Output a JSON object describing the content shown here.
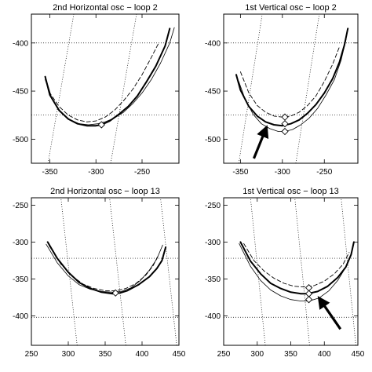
{
  "chart_data": [
    {
      "type": "line",
      "title": "2nd Horizontal osc − loop  2",
      "xlim": [
        -370,
        -210
      ],
      "ylim": [
        -525,
        -370
      ],
      "xticks": [
        -350,
        -300,
        -250
      ],
      "xtick_labels": [
        "-350",
        "-300",
        "-250"
      ],
      "yticks": [
        -400,
        -450,
        -500
      ],
      "ytick_labels": [
        "-400",
        "-450",
        "-500"
      ],
      "grid": "dotted reference lines",
      "series": [
        {
          "style": "thick-solid",
          "x": [
            -355,
            -350,
            -340,
            -330,
            -320,
            -310,
            -300,
            -294,
            -285,
            -275,
            -265,
            -255,
            -245,
            -235,
            -225,
            -220
          ],
          "y": [
            -435,
            -454,
            -470,
            -479,
            -484,
            -486,
            -486,
            -485,
            -481,
            -474,
            -466,
            -455,
            -440,
            -424,
            -403,
            -385
          ]
        },
        {
          "style": "thin-solid",
          "x": [
            -354,
            -348,
            -338,
            -328,
            -318,
            -308,
            -298,
            -290,
            -280,
            -270,
            -260,
            -250,
            -240,
            -230,
            -220,
            -215
          ],
          "y": [
            -438,
            -457,
            -472,
            -480,
            -484,
            -485,
            -484,
            -482,
            -478,
            -472,
            -463,
            -452,
            -438,
            -421,
            -400,
            -384
          ]
        },
        {
          "style": "dashed",
          "x": [
            -355,
            -350,
            -340,
            -330,
            -320,
            -310,
            -300,
            -290,
            -280,
            -270,
            -260,
            -250,
            -240,
            -232
          ],
          "y": [
            -438,
            -452,
            -466,
            -475,
            -480,
            -482,
            -481,
            -477,
            -470,
            -460,
            -448,
            -433,
            -415,
            -400
          ]
        }
      ],
      "markers": [
        {
          "x": -294,
          "y": -485
        }
      ],
      "reference_lines": {
        "horizontal": [
          -400,
          -475
        ],
        "slanted": [
          [
            [
              -352,
              -525
            ],
            [
              -324,
              -370
            ]
          ],
          [
            [
              -284,
              -525
            ],
            [
              -256,
              -370
            ]
          ]
        ]
      }
    },
    {
      "type": "line",
      "title": "1st Vertical osc − loop  2",
      "xlim": [
        -370,
        -210
      ],
      "ylim": [
        -525,
        -370
      ],
      "xticks": [
        -350,
        -300,
        -250
      ],
      "xtick_labels": [
        "-350",
        "-300",
        "-250"
      ],
      "yticks": [
        -400,
        -450,
        -500
      ],
      "ytick_labels": [
        "-400",
        "-450",
        "-500"
      ],
      "grid": "dotted reference lines",
      "series": [
        {
          "style": "thick-solid",
          "x": [
            -355,
            -350,
            -340,
            -330,
            -320,
            -310,
            -300,
            -290,
            -280,
            -270,
            -260,
            -250,
            -240,
            -232,
            -226,
            -222
          ],
          "y": [
            -433,
            -449,
            -466,
            -476,
            -482,
            -485,
            -486,
            -484,
            -480,
            -473,
            -464,
            -452,
            -437,
            -420,
            -402,
            -385
          ]
        },
        {
          "style": "thin-solid",
          "x": [
            -352,
            -345,
            -335,
            -325,
            -315,
            -305,
            -297,
            -288,
            -278,
            -268,
            -258,
            -248,
            -238,
            -230,
            -224
          ],
          "y": [
            -440,
            -457,
            -474,
            -484,
            -489,
            -492,
            -492,
            -490,
            -485,
            -478,
            -468,
            -454,
            -438,
            -418,
            -396
          ]
        },
        {
          "style": "dashed",
          "x": [
            -350,
            -340,
            -330,
            -320,
            -310,
            -300,
            -290,
            -280,
            -270,
            -260,
            -250,
            -240,
            -232
          ],
          "y": [
            -430,
            -452,
            -465,
            -472,
            -476,
            -477,
            -476,
            -472,
            -465,
            -455,
            -440,
            -422,
            -404
          ]
        }
      ],
      "markers": [
        {
          "x": -297,
          "y": -477
        },
        {
          "x": -297,
          "y": -484
        },
        {
          "x": -297,
          "y": -492
        }
      ],
      "arrows": [
        {
          "from": [
            -334,
            -520
          ],
          "to": [
            -321,
            -492
          ]
        }
      ],
      "reference_lines": {
        "horizontal": [
          -400,
          -475
        ],
        "slanted": [
          [
            [
              -352,
              -525
            ],
            [
              -324,
              -370
            ]
          ],
          [
            [
              -284,
              -525
            ],
            [
              -256,
              -370
            ]
          ]
        ]
      }
    },
    {
      "type": "line",
      "title": "2nd Horizontal osc − loop  13",
      "xlim": [
        250,
        450
      ],
      "ylim": [
        -440,
        -240
      ],
      "xticks": [
        250,
        300,
        350,
        400,
        450
      ],
      "xtick_labels": [
        "250",
        "300",
        "350",
        "400",
        "450"
      ],
      "yticks": [
        -250,
        -300,
        -350,
        -400
      ],
      "ytick_labels": [
        "-250",
        "-300",
        "-350",
        "-400"
      ],
      "grid": "dotted reference lines",
      "series": [
        {
          "style": "thick-solid",
          "x": [
            272,
            285,
            300,
            315,
            330,
            345,
            360,
            370,
            380,
            395,
            410,
            420,
            427,
            432
          ],
          "y": [
            -300,
            -322,
            -341,
            -355,
            -363,
            -368,
            -370,
            -369,
            -366,
            -358,
            -347,
            -336,
            -325,
            -307
          ]
        },
        {
          "style": "thin-solid",
          "x": [
            270,
            285,
            300,
            315,
            330,
            345,
            360,
            372,
            385,
            398,
            410,
            420,
            428
          ],
          "y": [
            -303,
            -328,
            -346,
            -358,
            -364,
            -367,
            -368,
            -367,
            -362,
            -352,
            -338,
            -323,
            -304
          ]
        },
        {
          "style": "dashed",
          "x": [
            274,
            290,
            305,
            320,
            335,
            350,
            365,
            378,
            392,
            405,
            415,
            422
          ],
          "y": [
            -305,
            -330,
            -346,
            -357,
            -363,
            -366,
            -366,
            -363,
            -356,
            -345,
            -332,
            -318
          ]
        }
      ],
      "markers": [
        {
          "x": 364,
          "y": -369
        }
      ],
      "reference_lines": {
        "horizontal": [
          -322,
          -402
        ],
        "slanted": [
          [
            [
              312,
              -440
            ],
            [
              290,
              -240
            ]
          ],
          [
            [
              378,
              -440
            ],
            [
              356,
              -240
            ]
          ],
          [
            [
              447,
              -440
            ],
            [
              425,
              -240
            ]
          ]
        ]
      }
    },
    {
      "type": "line",
      "title": "1st Vertical osc − loop  13",
      "xlim": [
        250,
        450
      ],
      "ylim": [
        -440,
        -240
      ],
      "xticks": [
        250,
        300,
        350,
        400,
        450
      ],
      "xtick_labels": [
        "250",
        "300",
        "350",
        "400",
        "450"
      ],
      "yticks": [
        -250,
        -300,
        -350,
        -400
      ],
      "ytick_labels": [
        "-250",
        "-300",
        "-350",
        "-400"
      ],
      "grid": "dotted reference lines",
      "series": [
        {
          "style": "thick-solid",
          "x": [
            275,
            290,
            305,
            320,
            335,
            350,
            365,
            375,
            390,
            405,
            420,
            432,
            440,
            444
          ],
          "y": [
            -300,
            -326,
            -343,
            -356,
            -363,
            -368,
            -370,
            -370,
            -367,
            -360,
            -348,
            -334,
            -317,
            -300
          ]
        },
        {
          "style": "thin-solid",
          "x": [
            273,
            290,
            305,
            320,
            335,
            350,
            365,
            377,
            392,
            407,
            420,
            432,
            442
          ],
          "y": [
            -302,
            -333,
            -352,
            -365,
            -373,
            -378,
            -380,
            -380,
            -376,
            -366,
            -352,
            -334,
            -311
          ]
        },
        {
          "style": "dashed",
          "x": [
            280,
            295,
            310,
            325,
            340,
            355,
            370,
            385,
            400,
            415,
            428,
            437
          ],
          "y": [
            -302,
            -325,
            -339,
            -349,
            -356,
            -360,
            -361,
            -359,
            -353,
            -343,
            -330,
            -314
          ]
        }
      ],
      "markers": [
        {
          "x": 377,
          "y": -362
        },
        {
          "x": 377,
          "y": -370
        },
        {
          "x": 377,
          "y": -378
        }
      ],
      "arrows": [
        {
          "from": [
            424,
            -418
          ],
          "to": [
            396,
            -381
          ]
        }
      ],
      "reference_lines": {
        "horizontal": [
          -322,
          -402
        ],
        "slanted": [
          [
            [
              312,
              -440
            ],
            [
              290,
              -240
            ]
          ],
          [
            [
              378,
              -440
            ],
            [
              356,
              -240
            ]
          ],
          [
            [
              447,
              -440
            ],
            [
              425,
              -240
            ]
          ]
        ]
      }
    }
  ]
}
